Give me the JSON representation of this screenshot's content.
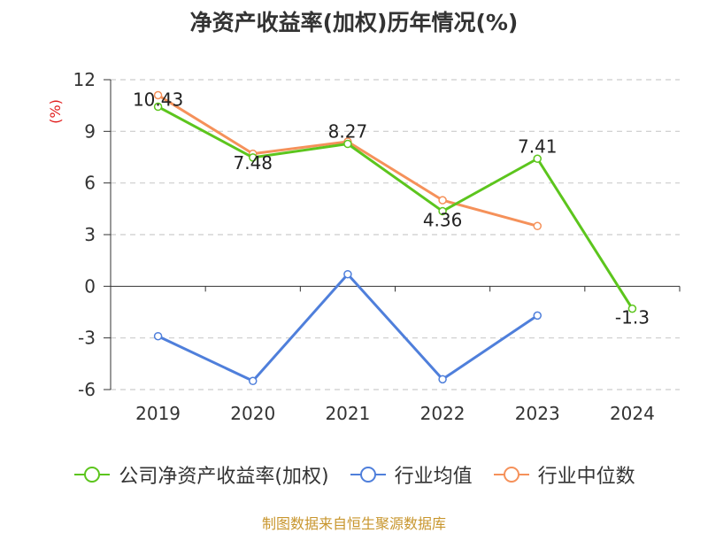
{
  "title": "净资产收益率(加权)历年情况(%)",
  "source_note": "制图数据来自恒生聚源数据库",
  "colors": {
    "company": "#5cc51d",
    "industry_avg": "#4f7fdb",
    "industry_median": "#f5915a",
    "axis_label": "#e11d1d"
  },
  "chart_data": {
    "type": "line",
    "title": "净资产收益率(加权)历年情况(%)",
    "ylabel": "(%)",
    "xlabel": "",
    "categories": [
      "2019",
      "2020",
      "2021",
      "2022",
      "2023",
      "2024"
    ],
    "ylim": [
      -6,
      12
    ],
    "yticks": [
      12,
      9,
      6,
      3,
      0,
      -3,
      -6
    ],
    "grid": true,
    "legend_position": "bottom",
    "series": [
      {
        "name": "公司净资产收益率(加权)",
        "values": [
          10.43,
          7.48,
          8.27,
          4.36,
          7.41,
          -1.3
        ],
        "labels": [
          "10.43",
          "7.48",
          "8.27",
          "4.36",
          "7.41",
          "-1.3"
        ]
      },
      {
        "name": "行业均值",
        "values": [
          -2.9,
          -5.5,
          0.7,
          -5.4,
          -1.7,
          null
        ]
      },
      {
        "name": "行业中位数",
        "values": [
          11.1,
          7.7,
          8.4,
          5.0,
          3.5,
          null
        ]
      }
    ]
  }
}
